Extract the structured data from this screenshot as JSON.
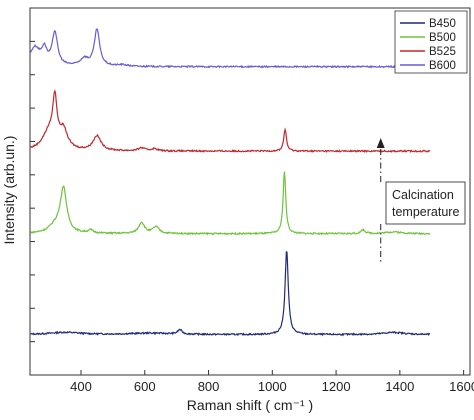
{
  "chart_data": {
    "type": "line",
    "xlabel": "Raman shift ( cm⁻¹ )",
    "ylabel": "Intensity (arb.un.)",
    "xlim": [
      240,
      1620
    ],
    "xticks": [
      400,
      600,
      800,
      1000,
      1200,
      1400,
      1600
    ],
    "ylim": [
      0,
      1
    ],
    "yticklabels": "none",
    "grid": false,
    "legend_position": "top-right",
    "annotation": {
      "lines": [
        "Calcination",
        "temperature"
      ],
      "arrow": "dash-dot, pointing up",
      "x": 1340
    },
    "series": [
      {
        "name": "B450",
        "color": "#1f2a7a",
        "baseline": 0.11,
        "peaks": [
          {
            "x": 350,
            "h": 0.006,
            "w": 60
          },
          {
            "x": 620,
            "h": 0.004,
            "w": 80
          },
          {
            "x": 710,
            "h": 0.012,
            "w": 8
          },
          {
            "x": 1045,
            "h": 0.23,
            "w": 6
          },
          {
            "x": 1380,
            "h": 0.006,
            "w": 40
          }
        ]
      },
      {
        "name": "B500",
        "color": "#6cc43a",
        "baseline": 0.385,
        "peaks": [
          {
            "x": 320,
            "h": 0.02,
            "w": 25
          },
          {
            "x": 345,
            "h": 0.12,
            "w": 12
          },
          {
            "x": 430,
            "h": 0.008,
            "w": 10
          },
          {
            "x": 590,
            "h": 0.03,
            "w": 11
          },
          {
            "x": 635,
            "h": 0.018,
            "w": 12
          },
          {
            "x": 1038,
            "h": 0.17,
            "w": 5
          },
          {
            "x": 1285,
            "h": 0.01,
            "w": 8
          },
          {
            "x": 1380,
            "h": 0.005,
            "w": 30
          }
        ]
      },
      {
        "name": "B525",
        "color": "#c0272d",
        "baseline": 0.61,
        "peaks": [
          {
            "x": 300,
            "h": 0.05,
            "w": 25
          },
          {
            "x": 318,
            "h": 0.12,
            "w": 8
          },
          {
            "x": 345,
            "h": 0.05,
            "w": 15
          },
          {
            "x": 450,
            "h": 0.04,
            "w": 15
          },
          {
            "x": 590,
            "h": 0.008,
            "w": 12
          },
          {
            "x": 630,
            "h": 0.006,
            "w": 12
          },
          {
            "x": 1040,
            "h": 0.06,
            "w": 5
          }
        ]
      },
      {
        "name": "B600",
        "color": "#6a5ad8",
        "baseline": 0.84,
        "peaks": [
          {
            "x": 255,
            "h": 0.05,
            "w": 20
          },
          {
            "x": 285,
            "h": 0.04,
            "w": 10
          },
          {
            "x": 318,
            "h": 0.09,
            "w": 10
          },
          {
            "x": 410,
            "h": 0.02,
            "w": 15
          },
          {
            "x": 450,
            "h": 0.1,
            "w": 10
          },
          {
            "x": 530,
            "h": 0.004,
            "w": 20
          }
        ]
      }
    ]
  }
}
